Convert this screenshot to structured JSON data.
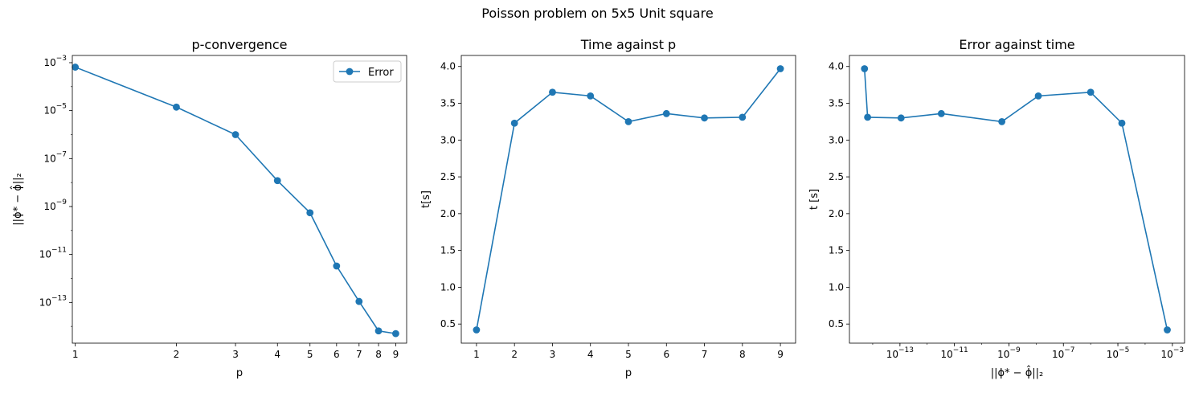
{
  "suptitle": "Poisson problem on 5x5 Unit square",
  "chart_data": [
    {
      "type": "line",
      "title": "p-convergence",
      "xlabel": "p",
      "ylabel": "||ϕ* − ϕ̂||₂",
      "xscale": "log",
      "yscale": "log",
      "xlim": [
        0.98,
        9.7
      ],
      "ylim": [
        2e-15,
        0.002
      ],
      "x_ticks": [
        1,
        2,
        3,
        4,
        5,
        6,
        7,
        8,
        9
      ],
      "y_ticks": [
        {
          "value": 1e-13,
          "base": "10",
          "exp": "−13"
        },
        {
          "value": 1e-11,
          "base": "10",
          "exp": "−11"
        },
        {
          "value": 1e-09,
          "base": "10",
          "exp": "−9"
        },
        {
          "value": 1e-07,
          "base": "10",
          "exp": "−7"
        },
        {
          "value": 1e-05,
          "base": "10",
          "exp": "−5"
        },
        {
          "value": 0.001,
          "base": "10",
          "exp": "−3"
        }
      ],
      "legend": {
        "placement": "top-right",
        "entries": [
          "Error"
        ]
      },
      "series": [
        {
          "name": "Error",
          "color": "#1f77b4",
          "x": [
            1,
            2,
            3,
            4,
            5,
            6,
            7,
            8,
            9
          ],
          "y": [
            0.00065,
            1.4e-05,
            1e-06,
            1.2e-08,
            5.5e-10,
            3.3e-12,
            1.1e-13,
            6.5e-15,
            5e-15
          ]
        }
      ]
    },
    {
      "type": "line",
      "title": "Time against p",
      "xlabel": "p",
      "ylabel": "t[s]",
      "xscale": "linear",
      "yscale": "linear",
      "xlim": [
        0.6,
        9.4
      ],
      "ylim": [
        0.24,
        4.15
      ],
      "x_ticks": [
        1,
        2,
        3,
        4,
        5,
        6,
        7,
        8,
        9
      ],
      "y_ticks": [
        "0.5",
        "1.0",
        "1.5",
        "2.0",
        "2.5",
        "3.0",
        "3.5",
        "4.0"
      ],
      "series": [
        {
          "color": "#1f77b4",
          "x": [
            1,
            2,
            3,
            4,
            5,
            6,
            7,
            8,
            9
          ],
          "y": [
            0.42,
            3.23,
            3.65,
            3.6,
            3.25,
            3.36,
            3.3,
            3.31,
            3.97
          ]
        }
      ]
    },
    {
      "type": "line",
      "title": "Error against time",
      "xlabel": "||ϕ* − ϕ̂||₂",
      "ylabel": "t [s]",
      "xscale": "log",
      "yscale": "linear",
      "xlim": [
        1.4e-15,
        0.0028
      ],
      "ylim": [
        0.24,
        4.15
      ],
      "x_ticks": [
        {
          "value": 1e-13,
          "base": "10",
          "exp": "−13"
        },
        {
          "value": 1e-11,
          "base": "10",
          "exp": "−11"
        },
        {
          "value": 1e-09,
          "base": "10",
          "exp": "−9"
        },
        {
          "value": 1e-07,
          "base": "10",
          "exp": "−7"
        },
        {
          "value": 1e-05,
          "base": "10",
          "exp": "−5"
        },
        {
          "value": 0.001,
          "base": "10",
          "exp": "−3"
        }
      ],
      "y_ticks": [
        "0.5",
        "1.0",
        "1.5",
        "2.0",
        "2.5",
        "3.0",
        "3.5",
        "4.0"
      ],
      "series": [
        {
          "color": "#1f77b4",
          "x": [
            5e-15,
            6.5e-15,
            1.1e-13,
            3.3e-12,
            5.5e-10,
            1.2e-08,
            1e-06,
            1.4e-05,
            0.00065
          ],
          "y": [
            3.97,
            3.31,
            3.3,
            3.36,
            3.25,
            3.6,
            3.65,
            3.23,
            0.42
          ]
        }
      ]
    }
  ]
}
